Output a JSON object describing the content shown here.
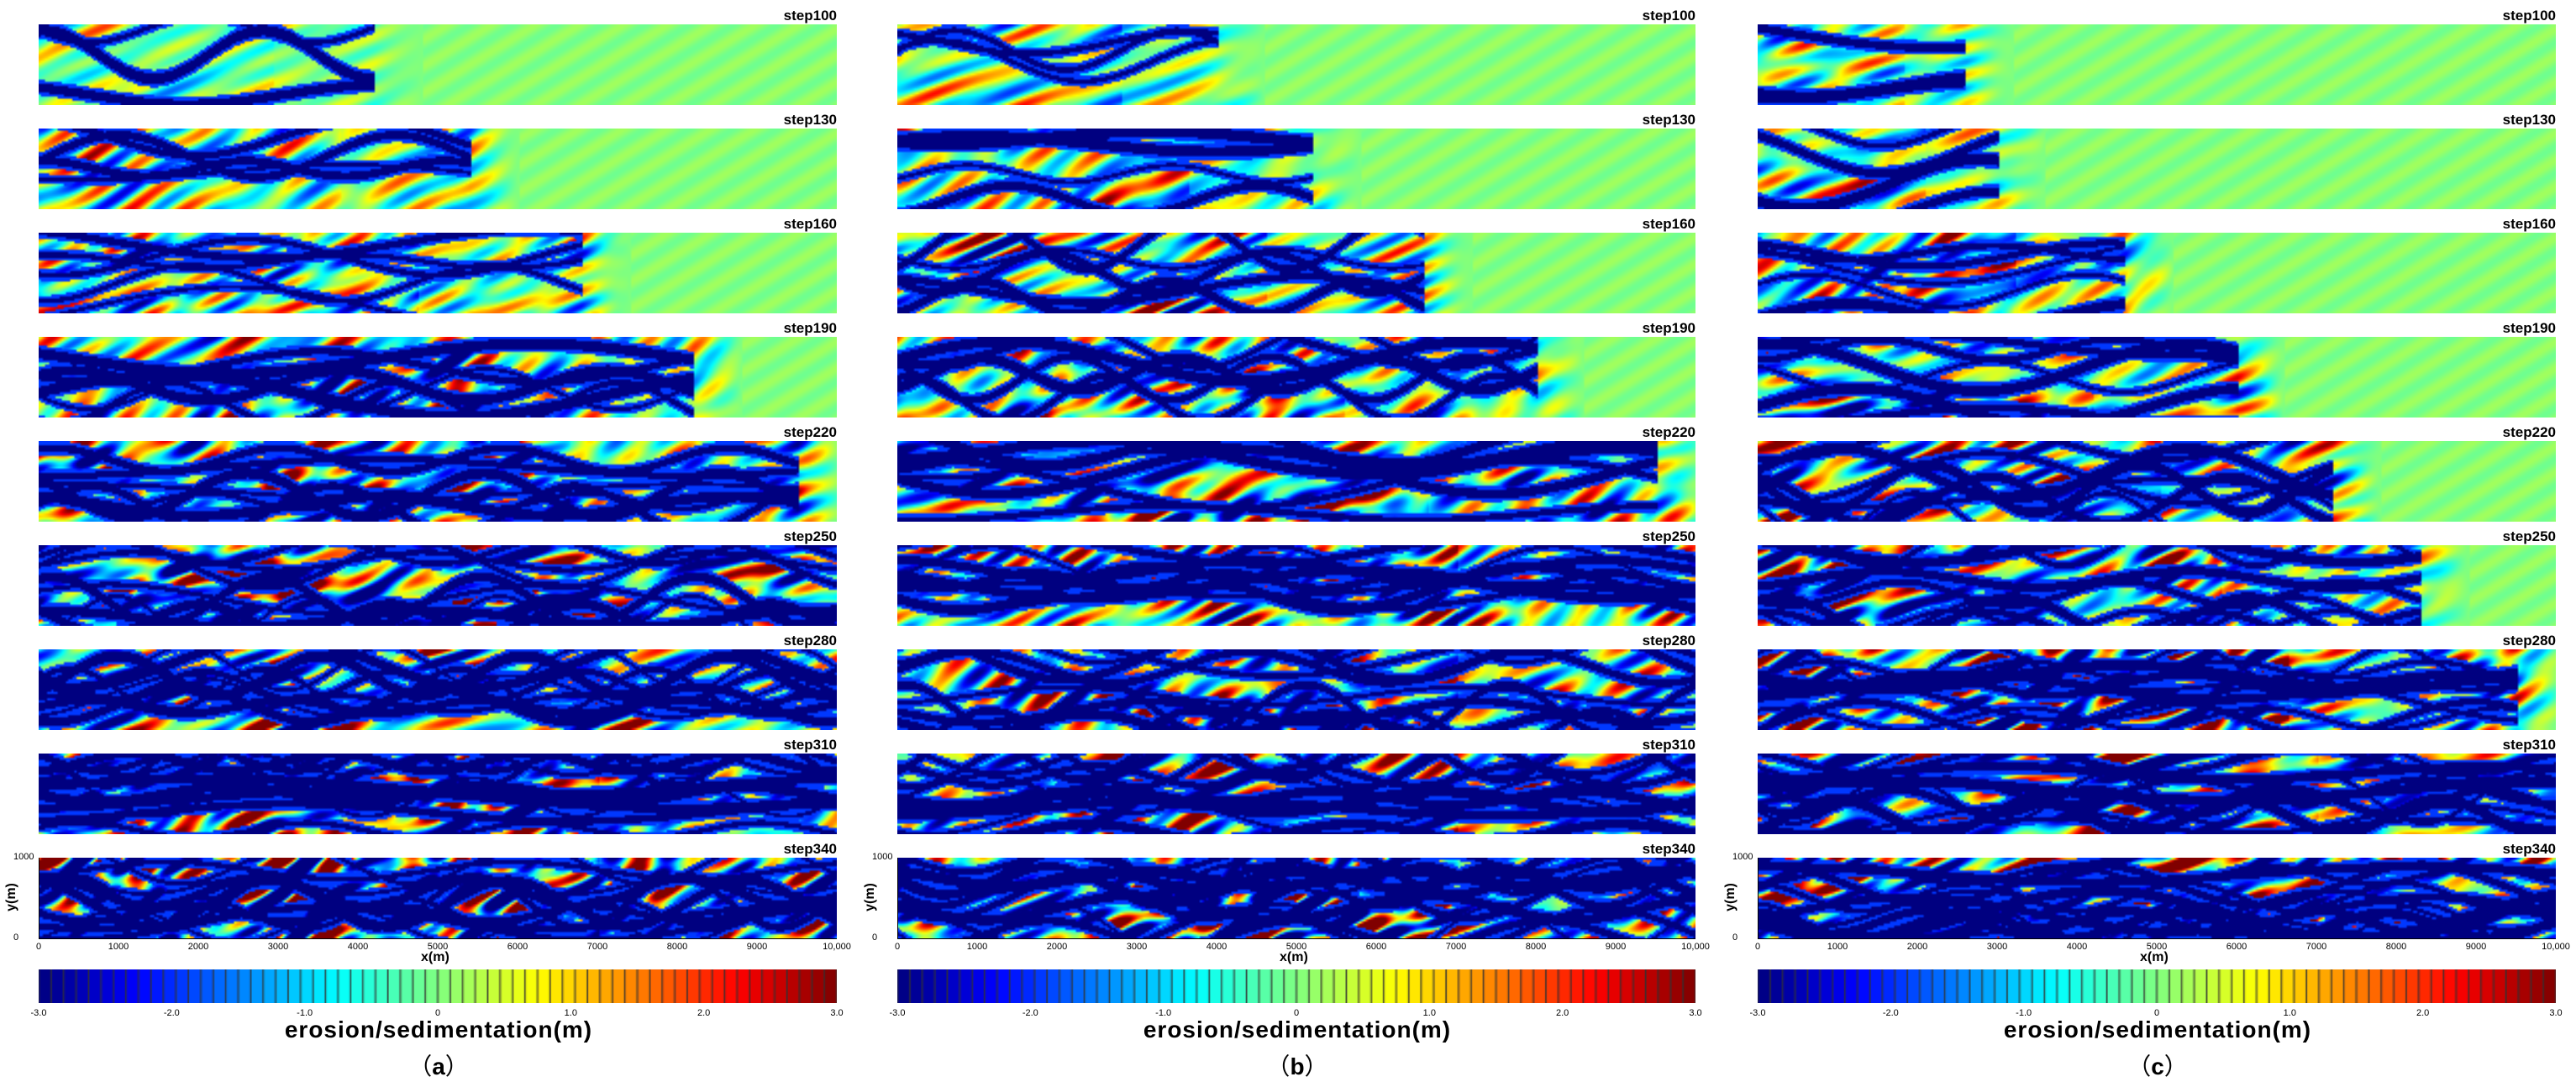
{
  "panels": [
    {
      "label_open": "（",
      "letter": "a",
      "label_close": "）"
    },
    {
      "label_open": "（",
      "letter": "b",
      "label_close": "）"
    },
    {
      "label_open": "（",
      "letter": "c",
      "label_close": "）"
    }
  ],
  "steps": [
    "step100",
    "step130",
    "step160",
    "step190",
    "step220",
    "step250",
    "step280",
    "step310",
    "step340"
  ],
  "x_axis": {
    "title": "x(m)",
    "ticks": [
      "0",
      "1000",
      "2000",
      "3000",
      "4000",
      "5000",
      "6000",
      "7000",
      "8000",
      "9000",
      "10,000"
    ]
  },
  "y_axis": {
    "title": "y(m)",
    "ticks": [
      "1000",
      "0"
    ]
  },
  "colorbar": {
    "title": "erosion/sedimentation(m)",
    "ticks": [
      "-3.0",
      "-2.0",
      "-1.0",
      "0",
      "1.0",
      "2.0",
      "3.0"
    ],
    "min": -3.0,
    "max": 3.0
  },
  "colors": {
    "neutral": "#00f07a",
    "deep_blue": "#00007f",
    "dark_red": "#7f0000"
  },
  "development_extent": {
    "a": [
      0.42,
      0.54,
      0.68,
      0.82,
      0.95,
      1.0,
      1.0,
      1.0,
      1.0
    ],
    "b": [
      0.4,
      0.52,
      0.66,
      0.8,
      0.95,
      1.0,
      1.0,
      1.0,
      1.0
    ],
    "c": [
      0.26,
      0.3,
      0.46,
      0.6,
      0.72,
      0.83,
      0.95,
      1.0,
      1.0
    ]
  }
}
